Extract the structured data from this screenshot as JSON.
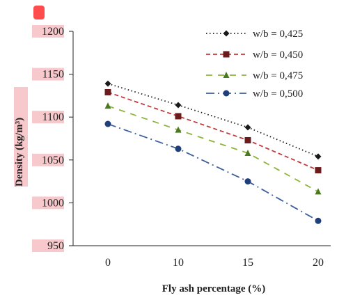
{
  "chart_data": {
    "type": "line",
    "title": "",
    "xlabel": "Fly ash percentage (%)",
    "ylabel": "Density (kg/m³)",
    "categories": [
      "0",
      "10",
      "15",
      "20"
    ],
    "ylim": [
      950,
      1200
    ],
    "yticks": [
      "950",
      "1000",
      "1050",
      "1100",
      "1150",
      "1200"
    ],
    "grid": false,
    "legend_position": "top-right",
    "series": [
      {
        "name": "w/b = 0,425",
        "values": [
          1139,
          1114,
          1088,
          1054
        ],
        "color": "#1a1a1a",
        "marker": "diamond",
        "dash": "dotted"
      },
      {
        "name": "w/b = 0,450",
        "values": [
          1129,
          1101,
          1073,
          1038
        ],
        "color": "#c0393b",
        "marker_color": "#6b1b1b",
        "marker": "square",
        "dash": "dashed"
      },
      {
        "name": "w/b = 0,475",
        "values": [
          1113,
          1085,
          1058,
          1013
        ],
        "color": "#8db33a",
        "marker_color": "#4a7a1e",
        "marker": "triangle",
        "dash": "longdash"
      },
      {
        "name": "w/b = 0,500",
        "values": [
          1092,
          1063,
          1025,
          979
        ],
        "color": "#3b5f9e",
        "marker_color": "#1f3f7a",
        "marker": "circle",
        "dash": "dashdot"
      }
    ],
    "highlight_color": "#f7c9cc",
    "badge_color": "#ff4d4d"
  }
}
